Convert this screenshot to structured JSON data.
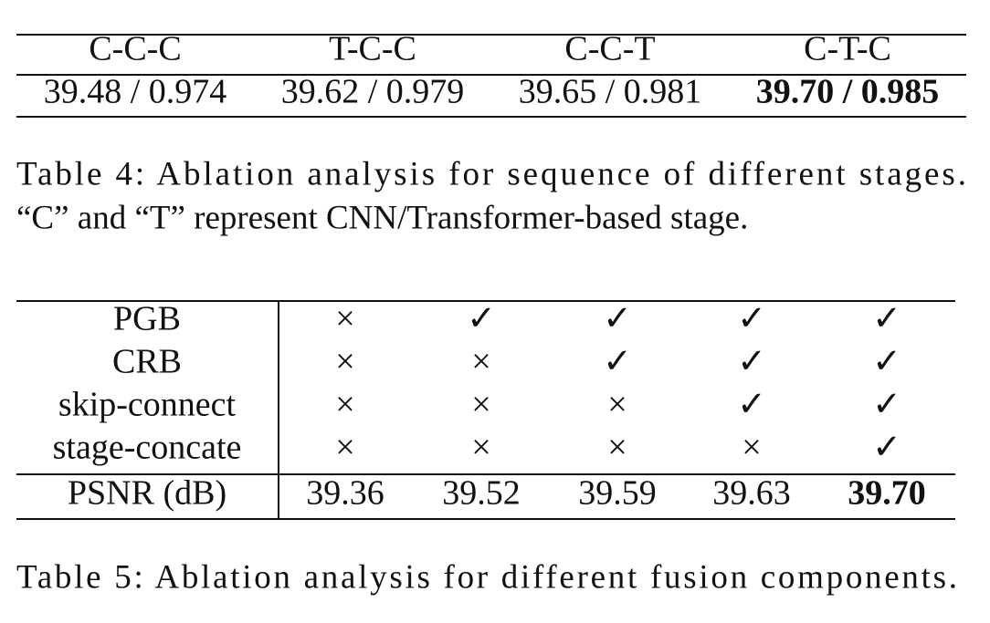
{
  "table4": {
    "header": [
      "C-C-C",
      "T-C-C",
      "C-C-T",
      "C-T-C"
    ],
    "row": [
      "39.48 / 0.974",
      "39.62 / 0.979",
      "39.65 / 0.981",
      "39.70 / 0.985"
    ],
    "bold_column": 3,
    "caption": [
      "Table 4: Ablation analysis for sequence of different stages.",
      "“C” and “T” represent CNN/Transformer-based stage."
    ]
  },
  "table5": {
    "rows": [
      {
        "label": "PGB",
        "cells": [
          "×",
          "✓",
          "✓",
          "✓",
          "✓"
        ]
      },
      {
        "label": "CRB",
        "cells": [
          "×",
          "×",
          "✓",
          "✓",
          "✓"
        ]
      },
      {
        "label": "skip-connect",
        "cells": [
          "×",
          "×",
          "×",
          "✓",
          "✓"
        ]
      },
      {
        "label": "stage-concate",
        "cells": [
          "×",
          "×",
          "×",
          "×",
          "✓"
        ]
      }
    ],
    "result": {
      "label": "PSNR (dB)",
      "cells": [
        "39.36",
        "39.52",
        "39.59",
        "39.63",
        "39.70"
      ]
    },
    "bold_column": 4,
    "caption": "Table 5: Ablation analysis for different fusion components."
  }
}
